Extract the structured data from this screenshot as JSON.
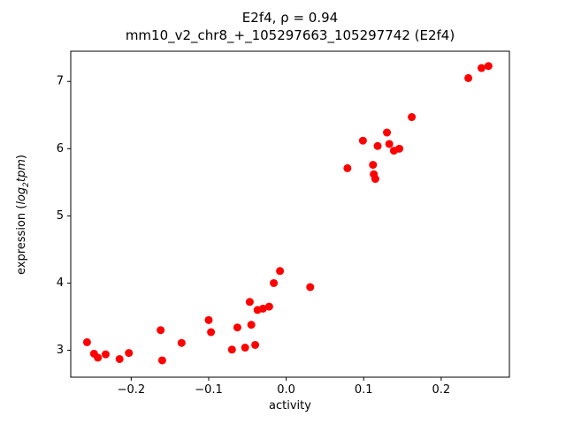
{
  "figure": {
    "title_line1": "E2f4, ρ = 0.94",
    "title_line2": "mm10_v2_chr8_+_105297663_105297742 (E2f4)",
    "xlabel": "activity",
    "ylabel_pre": "expression (",
    "ylabel_word1": "log",
    "ylabel_sub": "2",
    "ylabel_word2": "tpm",
    "ylabel_post": ")"
  },
  "chart_data": {
    "type": "scatter",
    "title": "E2f4, ρ = 0.94\nmm10_v2_chr8_+_105297663_105297742 (E2f4)",
    "xlabel": "activity",
    "ylabel": "expression (log2 tpm)",
    "legend": "none",
    "grid": false,
    "marker_color": "#ff0000",
    "marker_radius": 4.5,
    "xlim": [
      -0.278,
      0.288
    ],
    "ylim": [
      2.6,
      7.45
    ],
    "xticks": [
      -0.2,
      -0.1,
      0.0,
      0.1,
      0.2
    ],
    "xtick_labels": [
      "−0.2",
      "−0.1",
      "0.0",
      "0.1",
      "0.2"
    ],
    "yticks": [
      3,
      4,
      5,
      6,
      7
    ],
    "ytick_labels": [
      "3",
      "4",
      "5",
      "6",
      "7"
    ],
    "points": [
      [
        -0.257,
        3.12
      ],
      [
        -0.248,
        2.95
      ],
      [
        -0.243,
        2.89
      ],
      [
        -0.233,
        2.94
      ],
      [
        -0.215,
        2.87
      ],
      [
        -0.203,
        2.96
      ],
      [
        -0.162,
        3.3
      ],
      [
        -0.16,
        2.85
      ],
      [
        -0.135,
        3.11
      ],
      [
        -0.1,
        3.45
      ],
      [
        -0.097,
        3.27
      ],
      [
        -0.07,
        3.01
      ],
      [
        -0.063,
        3.34
      ],
      [
        -0.053,
        3.04
      ],
      [
        -0.047,
        3.72
      ],
      [
        -0.045,
        3.38
      ],
      [
        -0.04,
        3.08
      ],
      [
        -0.037,
        3.6
      ],
      [
        -0.03,
        3.62
      ],
      [
        -0.022,
        3.65
      ],
      [
        -0.016,
        4.0
      ],
      [
        -0.008,
        4.18
      ],
      [
        0.031,
        3.94
      ],
      [
        0.079,
        5.71
      ],
      [
        0.099,
        6.12
      ],
      [
        0.112,
        5.76
      ],
      [
        0.113,
        5.62
      ],
      [
        0.115,
        5.55
      ],
      [
        0.118,
        6.04
      ],
      [
        0.13,
        6.24
      ],
      [
        0.133,
        6.07
      ],
      [
        0.139,
        5.97
      ],
      [
        0.146,
        6.0
      ],
      [
        0.162,
        6.47
      ],
      [
        0.235,
        7.05
      ],
      [
        0.252,
        7.2
      ],
      [
        0.261,
        7.23
      ]
    ]
  }
}
